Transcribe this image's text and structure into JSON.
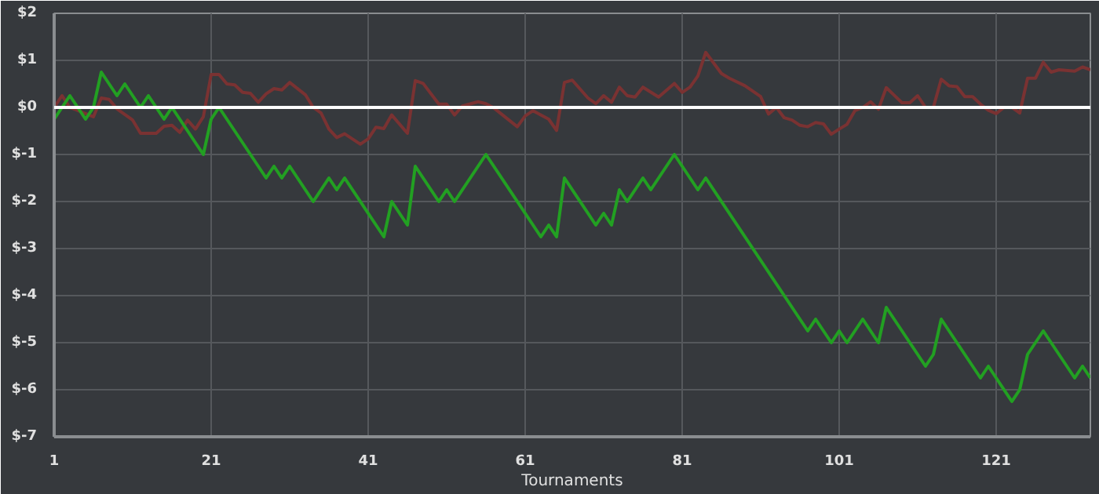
{
  "chart_data": {
    "type": "line",
    "xlabel": "Tournaments",
    "xlim": [
      1,
      133
    ],
    "ylim": [
      -7,
      2
    ],
    "xticks": [
      1,
      21,
      41,
      61,
      81,
      101,
      121
    ],
    "yticks": [
      {
        "value": 2,
        "label": "$2"
      },
      {
        "value": 1,
        "label": "$1"
      },
      {
        "value": 0,
        "label": "$0"
      },
      {
        "value": -1,
        "label": "$-1"
      },
      {
        "value": -2,
        "label": "$-2"
      },
      {
        "value": -3,
        "label": "$-3"
      },
      {
        "value": -4,
        "label": "$-4"
      },
      {
        "value": -5,
        "label": "$-5"
      },
      {
        "value": -6,
        "label": "$-6"
      },
      {
        "value": -7,
        "label": "$-7"
      }
    ],
    "grid": true,
    "marker": "none",
    "line_style": "solid",
    "ref_lines": [
      {
        "axis": "y",
        "value": 0,
        "color": "#ffffff"
      }
    ],
    "series": [
      {
        "color": "#7a3232",
        "x": [
          1,
          2,
          3,
          5,
          6,
          7,
          8,
          9,
          11,
          12,
          14,
          15,
          16,
          17,
          18,
          19,
          20,
          21,
          22,
          23,
          24,
          25,
          26,
          27,
          28,
          29,
          30,
          31,
          33,
          34,
          35,
          36,
          37,
          38,
          40,
          41,
          42,
          43,
          44,
          46,
          47,
          48,
          50,
          51,
          52,
          53,
          55,
          56,
          57,
          60,
          61,
          62,
          64,
          65,
          66,
          67,
          69,
          70,
          71,
          72,
          73,
          74,
          75,
          76,
          78,
          80,
          81,
          82,
          83,
          84,
          86,
          87,
          89,
          91,
          92,
          93,
          94,
          95,
          96,
          97,
          98,
          99,
          100,
          101,
          102,
          103,
          104,
          105,
          106,
          107,
          108,
          109,
          110,
          111,
          112,
          113,
          114,
          115,
          116,
          117,
          118,
          119,
          120,
          121,
          122,
          123,
          124,
          125,
          126,
          127,
          128,
          129,
          131,
          132,
          133
        ],
        "values": [
          0,
          0.25,
          0,
          -0.13,
          -0.2,
          0.2,
          0.17,
          -0.03,
          -0.27,
          -0.55,
          -0.55,
          -0.4,
          -0.38,
          -0.53,
          -0.27,
          -0.46,
          -0.2,
          0.7,
          0.7,
          0.5,
          0.48,
          0.32,
          0.3,
          0.11,
          0.29,
          0.4,
          0.37,
          0.53,
          0.27,
          0,
          -0.12,
          -0.46,
          -0.64,
          -0.56,
          -0.78,
          -0.67,
          -0.42,
          -0.45,
          -0.16,
          -0.55,
          0.57,
          0.51,
          0.07,
          0.07,
          -0.16,
          0.03,
          0.12,
          0.08,
          -0.01,
          -0.41,
          -0.18,
          -0.07,
          -0.25,
          -0.49,
          0.53,
          0.58,
          0.2,
          0.08,
          0.25,
          0.11,
          0.43,
          0.25,
          0.22,
          0.43,
          0.22,
          0.51,
          0.32,
          0.43,
          0.67,
          1.17,
          0.72,
          0.62,
          0.46,
          0.23,
          -0.14,
          0,
          -0.22,
          -0.27,
          -0.38,
          -0.41,
          -0.32,
          -0.35,
          -0.57,
          -0.46,
          -0.36,
          -0.07,
          0,
          0.12,
          -0.04,
          0.42,
          0.26,
          0.1,
          0.1,
          0.25,
          0,
          0,
          0.6,
          0.46,
          0.44,
          0.23,
          0.23,
          0.07,
          -0.06,
          -0.13,
          0,
          0,
          -0.12,
          0.62,
          0.62,
          0.96,
          0.75,
          0.8,
          0.77,
          0.86,
          0.8
        ]
      },
      {
        "color": "#22a022",
        "x": [
          1,
          3,
          5,
          6,
          7,
          9,
          10,
          12,
          13,
          15,
          16,
          20,
          21,
          22,
          28,
          29,
          30,
          31,
          34,
          36,
          37,
          38,
          43,
          44,
          46,
          47,
          50,
          51,
          52,
          56,
          63,
          64,
          65,
          66,
          70,
          71,
          72,
          73,
          74,
          76,
          77,
          80,
          83,
          84,
          97,
          98,
          100,
          101,
          102,
          104,
          106,
          107,
          112,
          113,
          114,
          119,
          120,
          123,
          124,
          125,
          127,
          131,
          132,
          133
        ],
        "values": [
          -0.25,
          0.25,
          -0.25,
          0,
          0.75,
          0.25,
          0.5,
          0,
          0.25,
          -0.25,
          0,
          -1,
          -0.25,
          0,
          -1.5,
          -1.25,
          -1.5,
          -1.25,
          -2,
          -1.5,
          -1.75,
          -1.5,
          -2.75,
          -2,
          -2.5,
          -1.25,
          -2,
          -1.75,
          -2,
          -1,
          -2.75,
          -2.5,
          -2.75,
          -1.5,
          -2.5,
          -2.25,
          -2.5,
          -1.75,
          -2,
          -1.5,
          -1.75,
          -1,
          -1.75,
          -1.5,
          -4.75,
          -4.5,
          -5,
          -4.75,
          -5,
          -4.5,
          -5,
          -4.25,
          -5.5,
          -5.25,
          -4.5,
          -5.75,
          -5.5,
          -6.25,
          -6,
          -5.25,
          -4.75,
          -5.75,
          -5.5,
          -5.75
        ]
      }
    ]
  }
}
